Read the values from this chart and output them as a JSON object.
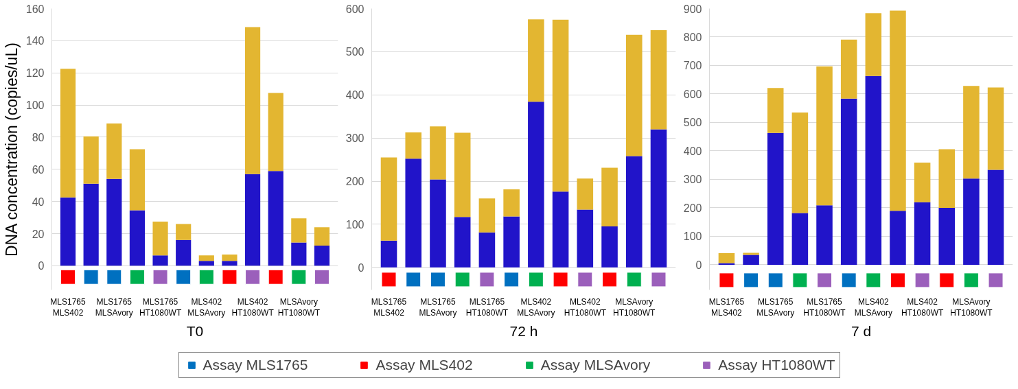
{
  "chart_data": [
    {
      "type": "bar",
      "stacked": true,
      "xlabel": "T0",
      "ylabel": "DNA concentration (copies/uL)",
      "categories": [
        "MLS1765\nMLS402",
        null,
        "MLS1765\nMLSAvory",
        null,
        "MLS1765\nHT1080WT",
        null,
        "MLS402\nMLSAvory",
        null,
        "MLS402\nHT1080WT",
        null,
        "MLSAvory\nHT1080WT",
        null
      ],
      "ylim": [
        -15,
        160
      ],
      "yticks": [
        0,
        20,
        40,
        60,
        80,
        100,
        120,
        140,
        160
      ],
      "grid": "y",
      "marker": "square",
      "legend": "bottom",
      "series": [
        {
          "color": "#2114c9",
          "values": [
            42.5,
            51,
            54,
            34.5,
            6.5,
            16,
            3,
            3,
            57,
            59,
            14.5,
            12.5
          ]
        },
        {
          "color": "#e3b631",
          "values": [
            80,
            29.5,
            34.5,
            38,
            21,
            10,
            3.5,
            4,
            91.5,
            48.5,
            15,
            11.5
          ]
        },
        {
          "type": "scatter",
          "name": "Assay MLS1765",
          "color": "#0070c0",
          "values": [
            null,
            -7,
            -7,
            null,
            null,
            -7,
            null,
            null,
            null,
            null,
            null,
            null
          ]
        },
        {
          "type": "scatter",
          "name": "Assay MLS402",
          "color": "#ff0000",
          "values": [
            -7,
            null,
            null,
            null,
            null,
            null,
            null,
            -7,
            null,
            -7,
            null,
            null
          ]
        },
        {
          "type": "scatter",
          "name": "Assay MLSAvory",
          "color": "#00b050",
          "values": [
            null,
            null,
            null,
            -7,
            null,
            null,
            -7,
            null,
            null,
            null,
            -7,
            null
          ]
        },
        {
          "type": "scatter",
          "name": "Assay HT1080WT",
          "color": "#9b5fbb",
          "values": [
            null,
            null,
            null,
            null,
            -7,
            null,
            null,
            null,
            -7,
            null,
            null,
            -7
          ]
        }
      ]
    },
    {
      "type": "bar",
      "stacked": true,
      "xlabel": "72 h",
      "categories": [
        "MLS1765\nMLS402",
        null,
        "MLS1765\nMLSAvory",
        null,
        "MLS1765\nHT1080WT",
        null,
        "MLS402\nMLSAvory",
        null,
        "MLS402\nHT1080WT",
        null,
        "MLSAvory\nHT1080WT",
        null
      ],
      "ylim": [
        -52,
        600
      ],
      "yticks": [
        0,
        100,
        200,
        300,
        400,
        500,
        600
      ],
      "grid": "y",
      "marker": "square",
      "series": [
        {
          "color": "#2114c9",
          "values": [
            62,
            252,
            204,
            117,
            81,
            118,
            384,
            176,
            134,
            95,
            258,
            320
          ]
        },
        {
          "color": "#e3b631",
          "values": [
            193,
            61,
            123,
            195,
            79,
            63,
            191,
            398,
            72,
            136,
            281,
            230
          ]
        },
        {
          "type": "scatter",
          "color": "#0070c0",
          "values": [
            null,
            -28,
            -28,
            null,
            null,
            -28,
            null,
            null,
            null,
            null,
            null,
            null
          ]
        },
        {
          "type": "scatter",
          "color": "#ff0000",
          "values": [
            -28,
            null,
            null,
            null,
            null,
            null,
            null,
            -28,
            null,
            -28,
            null,
            null
          ]
        },
        {
          "type": "scatter",
          "color": "#00b050",
          "values": [
            null,
            null,
            null,
            -28,
            null,
            null,
            -28,
            null,
            null,
            null,
            -28,
            null
          ]
        },
        {
          "type": "scatter",
          "color": "#9b5fbb",
          "values": [
            null,
            null,
            null,
            null,
            -28,
            null,
            null,
            null,
            -28,
            null,
            null,
            -28
          ]
        }
      ]
    },
    {
      "type": "bar",
      "stacked": true,
      "xlabel": "7 d",
      "categories": [
        "MLS1765\nMLS402",
        null,
        "MLS1765\nMLSAvory",
        null,
        "MLS1765\nHT1080WT",
        null,
        "MLS402\nMLSAvory",
        null,
        "MLS402\nHT1080WT",
        null,
        "MLSAvory\nHT1080WT",
        null
      ],
      "ylim": [
        -88,
        900
      ],
      "yticks": [
        0,
        100,
        200,
        300,
        400,
        500,
        600,
        700,
        800,
        900
      ],
      "grid": "y",
      "marker": "square",
      "series": [
        {
          "color": "#2114c9",
          "values": [
            6,
            35,
            463,
            182,
            209,
            584,
            663,
            190,
            220,
            200,
            303,
            334
          ]
        },
        {
          "color": "#e3b631",
          "values": [
            35,
            7,
            158,
            353,
            488,
            207,
            221,
            703,
            139,
            206,
            325,
            289
          ]
        },
        {
          "type": "scatter",
          "color": "#0070c0",
          "values": [
            null,
            -54,
            -54,
            null,
            null,
            -54,
            null,
            null,
            null,
            null,
            null,
            null
          ]
        },
        {
          "type": "scatter",
          "color": "#ff0000",
          "values": [
            -54,
            null,
            null,
            null,
            null,
            null,
            null,
            -54,
            null,
            -54,
            null,
            null
          ]
        },
        {
          "type": "scatter",
          "color": "#00b050",
          "values": [
            null,
            null,
            null,
            -54,
            null,
            null,
            -54,
            null,
            null,
            null,
            -54,
            null
          ]
        },
        {
          "type": "scatter",
          "color": "#9b5fbb",
          "values": [
            null,
            null,
            null,
            null,
            -54,
            null,
            null,
            null,
            -54,
            null,
            null,
            -54
          ]
        }
      ]
    }
  ]
}
